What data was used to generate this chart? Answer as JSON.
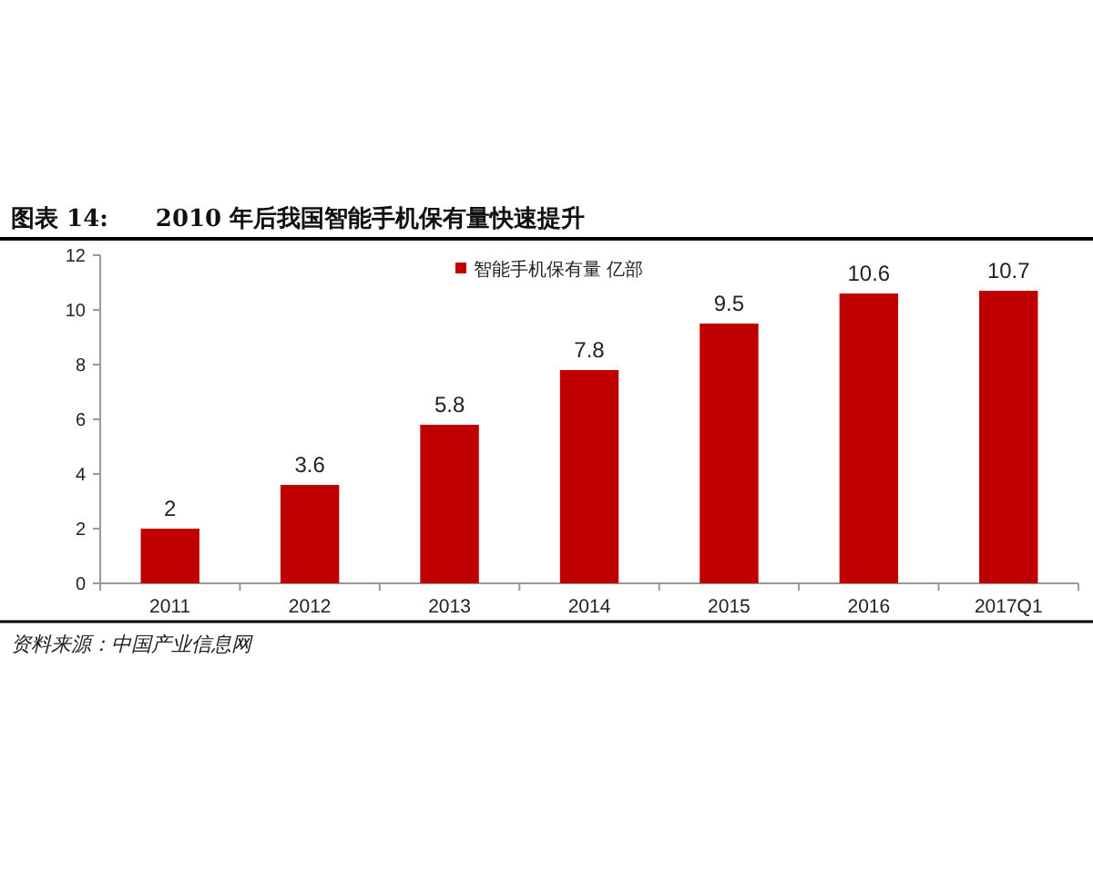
{
  "chart_data": {
    "type": "bar",
    "title": "图表 14:　　2010 年后我国智能手机保有量快速提升",
    "categories": [
      "2011",
      "2012",
      "2013",
      "2014",
      "2015",
      "2016",
      "2017Q1"
    ],
    "series": [
      {
        "name": "智能手机保有量 亿部",
        "color": "#c00000",
        "values": [
          2,
          3.6,
          5.8,
          7.8,
          9.5,
          10.6,
          10.7
        ]
      }
    ],
    "ylim": [
      0,
      12
    ],
    "yticks": [
      0,
      2,
      4,
      6,
      8,
      10,
      12
    ],
    "data_labels": true,
    "legend": "top",
    "grid": false,
    "annotations": [
      "资料来源：中国产业信息网"
    ]
  }
}
